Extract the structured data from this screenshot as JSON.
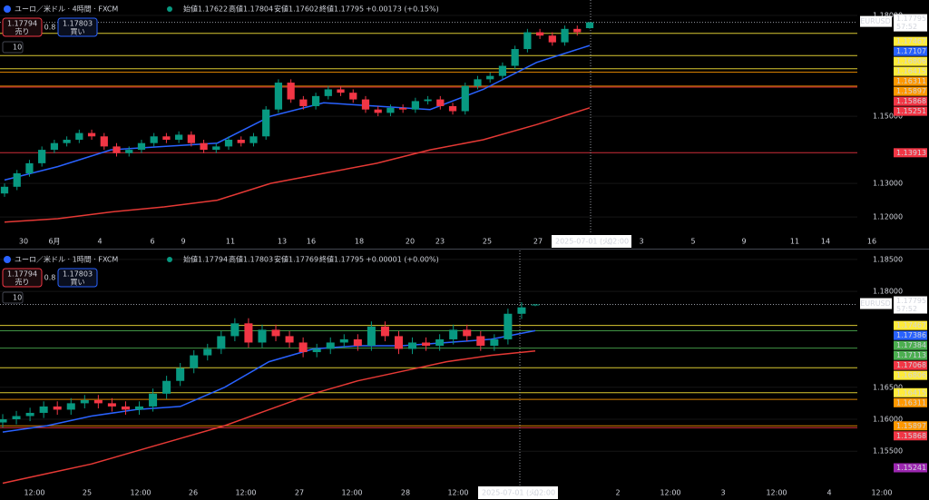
{
  "chart_data": [
    {
      "type": "candlestick",
      "title": "ユーロ／米ドル · 4時間 · FXCM",
      "open_label": "始値",
      "open": "1.17622",
      "high_label": "高値",
      "high": "1.17804",
      "low_label": "安値",
      "low": "1.17602",
      "close_label": "終値",
      "close": "1.17795",
      "change": "+0.00173 (+0.15%)",
      "sell_price": "1.17794",
      "sell_label": "売り",
      "spread": "0.8",
      "buy_price": "1.17803",
      "buy_label": "買い",
      "interval": "10",
      "symbol": "EURUSD",
      "current_price": 1.17795,
      "countdown": "57:52",
      "crosshair_date": "2025-07-01 (火)",
      "crosshair_time": "02:00",
      "x_labels": [
        "30",
        "6月",
        "4",
        "6",
        "9",
        "11",
        "13",
        "16",
        "18",
        "20",
        "23",
        "25",
        "27",
        "3",
        "5",
        "9",
        "11",
        "14",
        "16"
      ],
      "ylim": [
        1.1149,
        1.1846
      ],
      "yticks": [
        {
          "value": 1.18,
          "label": "1.18000"
        },
        {
          "value": 1.15,
          "label": "1.15000"
        },
        {
          "value": 1.13,
          "label": "1.13000"
        },
        {
          "value": 1.12,
          "label": "1.12000"
        }
      ],
      "up_color": "#089981",
      "down_color": "#f23645",
      "candles": {
        "open": [
          1.127,
          1.129,
          1.133,
          1.136,
          1.14,
          1.142,
          1.143,
          1.145,
          1.144,
          1.141,
          1.139,
          1.14,
          1.142,
          1.144,
          1.143,
          1.1445,
          1.142,
          1.14,
          1.141,
          1.143,
          1.142,
          1.144,
          1.152,
          1.16,
          1.155,
          1.153,
          1.156,
          1.158,
          1.157,
          1.155,
          1.152,
          1.151,
          1.1525,
          1.152,
          1.1545,
          1.155,
          1.153,
          1.1515,
          1.159,
          1.161,
          1.162,
          1.165,
          1.17,
          1.175,
          1.174,
          1.172,
          1.176,
          1.17622
        ],
        "high": [
          1.13,
          1.134,
          1.137,
          1.141,
          1.143,
          1.144,
          1.146,
          1.146,
          1.145,
          1.142,
          1.141,
          1.143,
          1.145,
          1.145,
          1.1455,
          1.1455,
          1.143,
          1.142,
          1.144,
          1.144,
          1.145,
          1.153,
          1.161,
          1.161,
          1.156,
          1.157,
          1.159,
          1.159,
          1.158,
          1.156,
          1.153,
          1.1535,
          1.1535,
          1.1555,
          1.156,
          1.156,
          1.154,
          1.16,
          1.162,
          1.163,
          1.166,
          1.171,
          1.176,
          1.176,
          1.175,
          1.177,
          1.177,
          1.17804
        ],
        "low": [
          1.126,
          1.128,
          1.132,
          1.135,
          1.139,
          1.141,
          1.142,
          1.143,
          1.14,
          1.138,
          1.138,
          1.139,
          1.141,
          1.142,
          1.142,
          1.141,
          1.139,
          1.139,
          1.14,
          1.141,
          1.141,
          1.143,
          1.151,
          1.154,
          1.152,
          1.152,
          1.155,
          1.156,
          1.154,
          1.151,
          1.15,
          1.15,
          1.151,
          1.151,
          1.1535,
          1.152,
          1.1505,
          1.1505,
          1.158,
          1.16,
          1.161,
          1.164,
          1.169,
          1.173,
          1.171,
          1.171,
          1.174,
          1.17602
        ],
        "close": [
          1.129,
          1.133,
          1.136,
          1.14,
          1.142,
          1.143,
          1.145,
          1.144,
          1.141,
          1.139,
          1.14,
          1.142,
          1.144,
          1.143,
          1.1445,
          1.142,
          1.14,
          1.141,
          1.143,
          1.142,
          1.144,
          1.152,
          1.16,
          1.155,
          1.153,
          1.156,
          1.158,
          1.157,
          1.155,
          1.152,
          1.151,
          1.1525,
          1.152,
          1.1545,
          1.155,
          1.153,
          1.1515,
          1.159,
          1.161,
          1.162,
          1.165,
          1.17,
          1.175,
          1.174,
          1.172,
          1.176,
          1.175,
          1.17795
        ]
      },
      "moving_averages": [
        {
          "color": "#2962ff",
          "values": [
            1.131,
            1.135,
            1.14,
            1.141,
            1.142,
            1.15,
            1.154,
            1.153,
            1.152,
            1.158,
            1.166,
            1.17107
          ]
        },
        {
          "color": "#e53935",
          "values": [
            1.1185,
            1.1195,
            1.1215,
            1.123,
            1.125,
            1.13,
            1.133,
            1.136,
            1.14,
            1.143,
            1.1475,
            1.15251
          ]
        }
      ],
      "levels": [
        {
          "value": 1.17467,
          "color": "#ffeb3b",
          "line": true
        },
        {
          "value": 1.17107,
          "color": "#2962ff",
          "line": false
        },
        {
          "value": 1.16806,
          "color": "#ffeb3b",
          "line": true
        },
        {
          "value": 1.16415,
          "color": "#ffeb3b",
          "line": true
        },
        {
          "value": 1.16311,
          "color": "#ff9800",
          "line": true
        },
        {
          "value": 1.15897,
          "color": "#ff9800",
          "line": true
        },
        {
          "value": 1.15868,
          "color": "#f23645",
          "line": true
        },
        {
          "value": 1.15251,
          "color": "#f23645",
          "line": false
        },
        {
          "value": 1.13913,
          "color": "#f23645",
          "line": true
        }
      ]
    },
    {
      "type": "candlestick",
      "title": "ユーロ／米ドル · 1時間 · FXCM",
      "open_label": "始値",
      "open": "1.17794",
      "high_label": "高値",
      "high": "1.17803",
      "low_label": "安値",
      "low": "1.17769",
      "close_label": "終値",
      "close": "1.17795",
      "change": "+0.00001 (+0.00%)",
      "sell_price": "1.17794",
      "sell_label": "売り",
      "spread": "0.8",
      "buy_price": "1.17803",
      "buy_label": "買い",
      "interval": "10",
      "symbol": "EURUSD",
      "current_price": 1.17795,
      "countdown": "57:52",
      "crosshair_date": "2025-07-01 (火)",
      "crosshair_time": "02:00",
      "x_labels": [
        "12:00",
        "25",
        "12:00",
        "26",
        "12:00",
        "27",
        "12:00",
        "28",
        "12:00",
        "2",
        "12:00",
        "3",
        "12:00",
        "4",
        "12:00"
      ],
      "ylim": [
        1.1495,
        1.1864
      ],
      "yticks": [
        {
          "value": 1.185,
          "label": "1.18500"
        },
        {
          "value": 1.18,
          "label": "1.18000"
        },
        {
          "value": 1.165,
          "label": "1.16500"
        },
        {
          "value": 1.16,
          "label": "1.16000"
        },
        {
          "value": 1.155,
          "label": "1.15500"
        }
      ],
      "up_color": "#089981",
      "down_color": "#f23645",
      "candles": {
        "open": [
          1.1595,
          1.16,
          1.1605,
          1.161,
          1.162,
          1.1615,
          1.1625,
          1.163,
          1.1625,
          1.162,
          1.1615,
          1.162,
          1.164,
          1.166,
          1.168,
          1.17,
          1.171,
          1.173,
          1.175,
          1.172,
          1.174,
          1.173,
          1.172,
          1.1705,
          1.171,
          1.172,
          1.1725,
          1.1715,
          1.1745,
          1.173,
          1.171,
          1.172,
          1.1715,
          1.1725,
          1.174,
          1.173,
          1.1715,
          1.1725,
          1.1765,
          1.17794
        ],
        "high": [
          1.1608,
          1.1613,
          1.1618,
          1.1628,
          1.1628,
          1.1633,
          1.1638,
          1.1638,
          1.1633,
          1.1628,
          1.1628,
          1.1648,
          1.1668,
          1.1688,
          1.1708,
          1.1718,
          1.1738,
          1.1758,
          1.1758,
          1.1748,
          1.1748,
          1.1738,
          1.1728,
          1.1718,
          1.1728,
          1.1733,
          1.1733,
          1.1753,
          1.1753,
          1.1738,
          1.1728,
          1.1728,
          1.1733,
          1.1748,
          1.1748,
          1.1738,
          1.1733,
          1.1773,
          1.1783,
          1.17803
        ],
        "low": [
          1.1587,
          1.1592,
          1.1597,
          1.1602,
          1.1607,
          1.1607,
          1.1617,
          1.1617,
          1.1612,
          1.1607,
          1.1607,
          1.1612,
          1.1632,
          1.1652,
          1.1672,
          1.1692,
          1.1702,
          1.1722,
          1.1712,
          1.1712,
          1.1722,
          1.1712,
          1.1697,
          1.1697,
          1.1702,
          1.1712,
          1.1707,
          1.1707,
          1.1722,
          1.1702,
          1.1702,
          1.1707,
          1.1707,
          1.1717,
          1.1722,
          1.1707,
          1.1707,
          1.1717,
          1.1757,
          1.17769
        ],
        "close": [
          1.16,
          1.1605,
          1.161,
          1.162,
          1.1615,
          1.1625,
          1.163,
          1.1625,
          1.162,
          1.1615,
          1.162,
          1.164,
          1.166,
          1.168,
          1.17,
          1.171,
          1.173,
          1.175,
          1.172,
          1.174,
          1.173,
          1.172,
          1.1705,
          1.171,
          1.172,
          1.1725,
          1.1715,
          1.1745,
          1.173,
          1.171,
          1.172,
          1.1715,
          1.1725,
          1.174,
          1.173,
          1.1715,
          1.1725,
          1.1765,
          1.1775,
          1.17795
        ]
      },
      "moving_averages": [
        {
          "color": "#2962ff",
          "values": [
            1.158,
            1.159,
            1.1605,
            1.1615,
            1.162,
            1.165,
            1.169,
            1.171,
            1.1715,
            1.1715,
            1.172,
            1.1725,
            1.17386
          ]
        },
        {
          "color": "#e53935",
          "values": [
            1.15,
            1.1515,
            1.153,
            1.155,
            1.157,
            1.159,
            1.1615,
            1.164,
            1.166,
            1.1675,
            1.169,
            1.17,
            1.17068
          ]
        }
      ],
      "levels": [
        {
          "value": 1.17467,
          "color": "#ffeb3b",
          "line": true
        },
        {
          "value": 1.17386,
          "color": "#2962ff",
          "line": false
        },
        {
          "value": 1.17384,
          "color": "#4caf50",
          "line": true
        },
        {
          "value": 1.17113,
          "color": "#4caf50",
          "line": true
        },
        {
          "value": 1.17068,
          "color": "#f23645",
          "line": false
        },
        {
          "value": 1.16806,
          "color": "#ffeb3b",
          "line": true
        },
        {
          "value": 1.16415,
          "color": "#ffeb3b",
          "line": true
        },
        {
          "value": 1.16311,
          "color": "#ff9800",
          "line": true
        },
        {
          "value": 1.15897,
          "color": "#ff9800",
          "line": true
        },
        {
          "value": 1.15868,
          "color": "#f23645",
          "line": true
        },
        {
          "value": 1.15241,
          "color": "#9c27b0",
          "line": false
        }
      ]
    }
  ]
}
